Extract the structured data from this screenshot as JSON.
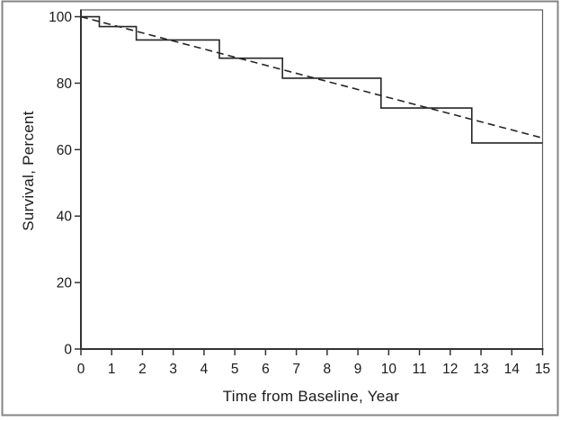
{
  "chart_data": {
    "type": "line",
    "subtype": "kaplan-meier-survival-step-with-dashed-trend",
    "title": "",
    "xlabel": "Time from Baseline, Year",
    "ylabel": "Survival, Percent",
    "xlim": [
      0,
      15
    ],
    "ylim": [
      0,
      100
    ],
    "x_ticks": [
      0,
      1,
      2,
      3,
      4,
      5,
      6,
      7,
      8,
      9,
      10,
      11,
      12,
      13,
      14,
      15
    ],
    "y_ticks": [
      0,
      20,
      40,
      60,
      80,
      100
    ],
    "grid": false,
    "legend": "none",
    "series": [
      {
        "name": "km-step-curve",
        "style": "step-solid",
        "points": [
          [
            0,
            100
          ],
          [
            0.6,
            100
          ],
          [
            0.6,
            97
          ],
          [
            1.8,
            97
          ],
          [
            1.8,
            93
          ],
          [
            4.5,
            93
          ],
          [
            4.5,
            87.5
          ],
          [
            6.55,
            87.5
          ],
          [
            6.55,
            81.5
          ],
          [
            9.75,
            81.5
          ],
          [
            9.75,
            72.5
          ],
          [
            12.7,
            72.5
          ],
          [
            12.7,
            62
          ],
          [
            15,
            62
          ]
        ]
      },
      {
        "name": "dashed-trend-line",
        "style": "dashed",
        "points": [
          [
            0,
            100
          ],
          [
            15,
            63.5
          ]
        ]
      }
    ],
    "step_drop_times_years": [
      0.6,
      1.8,
      4.5,
      6.55,
      9.75,
      12.7
    ],
    "step_survival_levels_percent": [
      100,
      97,
      93,
      87.5,
      81.5,
      72.5,
      62
    ]
  },
  "colors": {
    "background": "#ffffff",
    "axis": "#333333",
    "frame": "#5e5e5e",
    "curve": "#262626",
    "trend": "#262626",
    "text": "#1a1a1a",
    "outer_border": "#858585"
  }
}
